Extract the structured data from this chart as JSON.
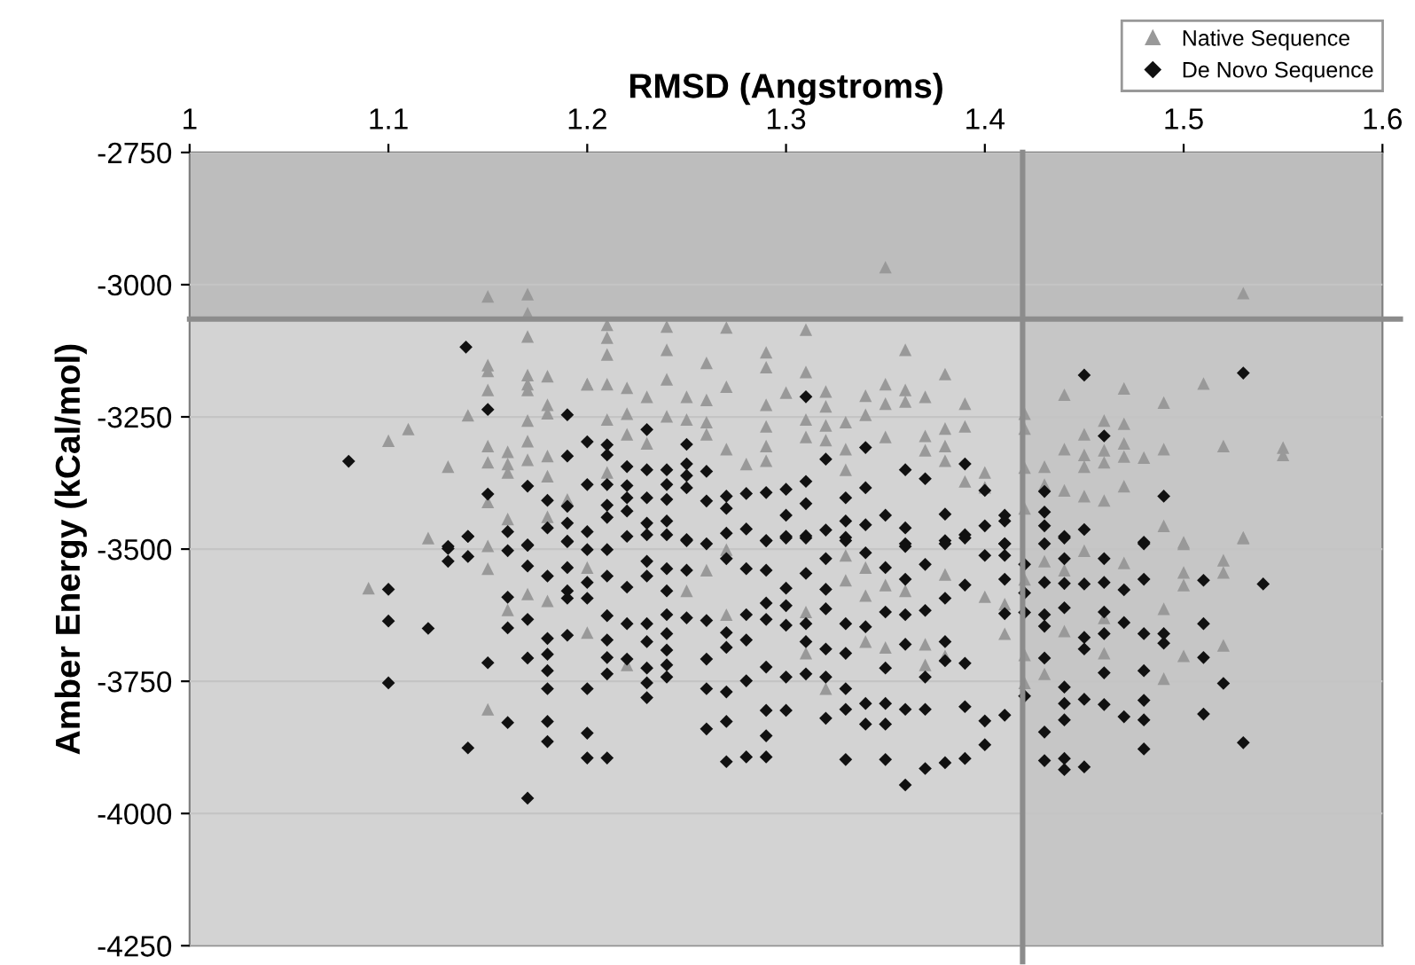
{
  "chart_data": {
    "type": "scatter",
    "xlabel": "RMSD (Angstroms)",
    "ylabel": "Amber Energy (kCal/mol)",
    "xlim": [
      1,
      1.6
    ],
    "xticks": [
      1,
      1.1,
      1.2,
      1.3,
      1.4,
      1.5,
      1.6
    ],
    "ylim": [
      -4250,
      -2750
    ],
    "yticks": [
      -2750,
      -3000,
      -3250,
      -3500,
      -3750,
      -4000,
      -4250
    ],
    "grid": "y",
    "legend": "top right",
    "bands": [
      {
        "axis": "x",
        "from": 1.419,
        "to": 1.6,
        "color": "#c6c6c6"
      },
      {
        "axis": "y",
        "from": -3065,
        "to": -2750,
        "color": "#bdbdbd"
      }
    ],
    "ref_lines": [
      {
        "axis": "x",
        "value": 1.419,
        "color": "#8c8c8c"
      },
      {
        "axis": "y",
        "value": -3065,
        "color": "#8c8c8c"
      }
    ],
    "series": [
      {
        "name": "Native Sequence",
        "color": "#999999",
        "marker": "triangle",
        "x": [
          1.15,
          1.17,
          1.17,
          1.17,
          1.15,
          1.15,
          1.15,
          1.17,
          1.17,
          1.17,
          1.18,
          1.14,
          1.18,
          1.18,
          1.17,
          1.11,
          1.1,
          1.15,
          1.17,
          1.13,
          1.15,
          1.16,
          1.16,
          1.16,
          1.17,
          1.18,
          1.18,
          1.15,
          1.16,
          1.12,
          1.18,
          1.19,
          1.2,
          1.09,
          1.15,
          1.15,
          1.16,
          1.17,
          1.18,
          1.15,
          1.35,
          1.21,
          1.21,
          1.21,
          1.21,
          1.24,
          1.24,
          1.24,
          1.24,
          1.27,
          1.27,
          1.27,
          1.31,
          1.31,
          1.31,
          1.31,
          1.29,
          1.29,
          1.29,
          1.29,
          1.29,
          1.29,
          1.26,
          1.26,
          1.26,
          1.26,
          1.36,
          1.38,
          1.38,
          1.38,
          1.38,
          1.2,
          1.22,
          1.22,
          1.22,
          1.23,
          1.23,
          1.25,
          1.25,
          1.3,
          1.32,
          1.32,
          1.32,
          1.32,
          1.34,
          1.34,
          1.35,
          1.35,
          1.35,
          1.36,
          1.36,
          1.37,
          1.37,
          1.37,
          1.39,
          1.39,
          1.39,
          1.33,
          1.33,
          1.33,
          1.21,
          1.21,
          1.28,
          1.4,
          1.4,
          1.2,
          1.2,
          1.25,
          1.26,
          1.27,
          1.27,
          1.31,
          1.31,
          1.32,
          1.33,
          1.33,
          1.34,
          1.34,
          1.34,
          1.35,
          1.35,
          1.36,
          1.37,
          1.37,
          1.38,
          1.38,
          1.4,
          1.22,
          1.53,
          1.44,
          1.47,
          1.47,
          1.47,
          1.47,
          1.47,
          1.49,
          1.49,
          1.49,
          1.51,
          1.42,
          1.42,
          1.42,
          1.42,
          1.46,
          1.46,
          1.46,
          1.46,
          1.45,
          1.45,
          1.45,
          1.45,
          1.44,
          1.44,
          1.43,
          1.43,
          1.48,
          1.52,
          1.55,
          1.55,
          1.53,
          1.5,
          1.41,
          1.41,
          1.42,
          1.42,
          1.42,
          1.43,
          1.43,
          1.44,
          1.44,
          1.45,
          1.46,
          1.46,
          1.47,
          1.49,
          1.49,
          1.5,
          1.5,
          1.5,
          1.5,
          1.52,
          1.52,
          1.52,
          1.53
        ],
        "values": [
          -3022,
          -3018,
          -3054,
          -3098,
          -3152,
          -3163,
          -3199,
          -3171,
          -3188,
          -3199,
          -3173,
          -3247,
          -3227,
          -3243,
          -3257,
          -3273,
          -3295,
          -3305,
          -3296,
          -3344,
          -3336,
          -3316,
          -3339,
          -3355,
          -3331,
          -3324,
          -3362,
          -3411,
          -3443,
          -3479,
          -3439,
          -3406,
          -3188,
          -3574,
          -3537,
          -3803,
          -3615,
          -3585,
          -3598,
          -3494,
          -2967,
          -3076,
          -3100,
          -3132,
          -3188,
          -3079,
          -3123,
          -3179,
          -3249,
          -3081,
          -3193,
          -3311,
          -3085,
          -3165,
          -3255,
          -3288,
          -3128,
          -3156,
          -3227,
          -3268,
          -3305,
          -3333,
          -3148,
          -3218,
          -3260,
          -3283,
          -3123,
          -3169,
          -3272,
          -3305,
          -3333,
          -3188,
          -3195,
          -3244,
          -3283,
          -3212,
          -3300,
          -3212,
          -3255,
          -3204,
          -3202,
          -3230,
          -3266,
          -3294,
          -3210,
          -3246,
          -3188,
          -3225,
          -3288,
          -3199,
          -3221,
          -3212,
          -3286,
          -3313,
          -3225,
          -3268,
          -3372,
          -3260,
          -3311,
          -3350,
          -3255,
          -3355,
          -3339,
          -3355,
          -3383,
          -3535,
          -3658,
          -3579,
          -3540,
          -3624,
          -3501,
          -3619,
          -3697,
          -3764,
          -3512,
          -3559,
          -3535,
          -3588,
          -3675,
          -3568,
          -3686,
          -3579,
          -3680,
          -3719,
          -3548,
          -3702,
          -3590,
          -3719,
          -3016,
          -3208,
          -3196,
          -3263,
          -3300,
          -3325,
          -3381,
          -3223,
          -3311,
          -3456,
          -3187,
          -3244,
          -3272,
          -3346,
          -3423,
          -3257,
          -3313,
          -3336,
          -3408,
          -3283,
          -3322,
          -3344,
          -3400,
          -3311,
          -3389,
          -3344,
          -3378,
          -3327,
          -3305,
          -3308,
          -3322,
          -3478,
          -3487,
          -3604,
          -3660,
          -3557,
          -3700,
          -3753,
          -3523,
          -3736,
          -3540,
          -3655,
          -3503,
          -3630,
          -3697,
          -3526,
          -3613,
          -3745,
          -3490,
          -3544,
          -3568,
          -3702,
          -3521,
          -3544,
          -3682,
          -3479
        ]
      },
      {
        "name": "De Novo Sequence",
        "color": "#111111",
        "marker": "diamond",
        "x": [
          1.139,
          1.15,
          1.19,
          1.08,
          1.19,
          1.17,
          1.15,
          1.18,
          1.18,
          1.19,
          1.19,
          1.19,
          1.14,
          1.16,
          1.13,
          1.17,
          1.13,
          1.13,
          1.14,
          1.14,
          1.16,
          1.17,
          1.17,
          1.1,
          1.1,
          1.1,
          1.12,
          1.16,
          1.16,
          1.16,
          1.17,
          1.17,
          1.17,
          1.15,
          1.14,
          1.18,
          1.18,
          1.18,
          1.18,
          1.18,
          1.18,
          1.18,
          1.19,
          1.19,
          1.19,
          1.19,
          1.19,
          1.31,
          1.23,
          1.23,
          1.23,
          1.23,
          1.2,
          1.2,
          1.2,
          1.21,
          1.21,
          1.21,
          1.21,
          1.21,
          1.22,
          1.22,
          1.22,
          1.22,
          1.22,
          1.24,
          1.24,
          1.24,
          1.24,
          1.25,
          1.25,
          1.25,
          1.25,
          1.25,
          1.26,
          1.26,
          1.27,
          1.27,
          1.27,
          1.28,
          1.28,
          1.29,
          1.29,
          1.3,
          1.3,
          1.3,
          1.31,
          1.31,
          1.31,
          1.32,
          1.32,
          1.33,
          1.33,
          1.33,
          1.34,
          1.34,
          1.34,
          1.35,
          1.36,
          1.36,
          1.36,
          1.37,
          1.38,
          1.38,
          1.39,
          1.39,
          1.4,
          1.4,
          1.2,
          1.2,
          1.2,
          1.2,
          1.2,
          1.2,
          1.21,
          1.21,
          1.21,
          1.21,
          1.21,
          1.21,
          1.21,
          1.22,
          1.22,
          1.22,
          1.23,
          1.23,
          1.23,
          1.23,
          1.23,
          1.23,
          1.23,
          1.23,
          1.24,
          1.24,
          1.24,
          1.24,
          1.24,
          1.24,
          1.24,
          1.24,
          1.25,
          1.25,
          1.25,
          1.26,
          1.26,
          1.26,
          1.26,
          1.26,
          1.27,
          1.27,
          1.27,
          1.27,
          1.27,
          1.27,
          1.28,
          1.28,
          1.28,
          1.28,
          1.28,
          1.29,
          1.29,
          1.29,
          1.29,
          1.29,
          1.29,
          1.29,
          1.29,
          1.3,
          1.3,
          1.3,
          1.3,
          1.3,
          1.3,
          1.31,
          1.31,
          1.31,
          1.31,
          1.31,
          1.32,
          1.32,
          1.32,
          1.32,
          1.32,
          1.32,
          1.33,
          1.33,
          1.33,
          1.33,
          1.33,
          1.33,
          1.34,
          1.34,
          1.34,
          1.34,
          1.35,
          1.35,
          1.35,
          1.35,
          1.35,
          1.35,
          1.36,
          1.36,
          1.36,
          1.36,
          1.36,
          1.36,
          1.37,
          1.37,
          1.37,
          1.37,
          1.37,
          1.38,
          1.38,
          1.38,
          1.38,
          1.38,
          1.39,
          1.39,
          1.39,
          1.39,
          1.39,
          1.4,
          1.4,
          1.4,
          1.45,
          1.53,
          1.46,
          1.49,
          1.43,
          1.43,
          1.43,
          1.41,
          1.41,
          1.41,
          1.45,
          1.44,
          1.48,
          1.41,
          1.41,
          1.41,
          1.41,
          1.41,
          1.42,
          1.42,
          1.42,
          1.42,
          1.43,
          1.43,
          1.43,
          1.43,
          1.43,
          1.43,
          1.43,
          1.44,
          1.44,
          1.44,
          1.44,
          1.44,
          1.44,
          1.44,
          1.44,
          1.44,
          1.45,
          1.45,
          1.45,
          1.45,
          1.45,
          1.46,
          1.46,
          1.46,
          1.46,
          1.46,
          1.46,
          1.47,
          1.47,
          1.47,
          1.48,
          1.48,
          1.48,
          1.48,
          1.48,
          1.48,
          1.48,
          1.49,
          1.49,
          1.51,
          1.51,
          1.51,
          1.51,
          1.52,
          1.53,
          1.54
        ],
        "values": [
          -3118,
          -3236,
          -3246,
          -3334,
          -3324,
          -3381,
          -3396,
          -3408,
          -3460,
          -3419,
          -3451,
          -3485,
          -3476,
          -3467,
          -3495,
          -3493,
          -3499,
          -3523,
          -3476,
          -3514,
          -3503,
          -3492,
          -3532,
          -3576,
          -3636,
          -3753,
          -3650,
          -3591,
          -3649,
          -3828,
          -3633,
          -3706,
          -3971,
          -3715,
          -3876,
          -3551,
          -3669,
          -3699,
          -3730,
          -3764,
          -3826,
          -3864,
          -3486,
          -3535,
          -3579,
          -3593,
          -3663,
          -3212,
          -3274,
          -3350,
          -3403,
          -3451,
          -3297,
          -3378,
          -3467,
          -3303,
          -3322,
          -3378,
          -3417,
          -3440,
          -3344,
          -3380,
          -3403,
          -3428,
          -3476,
          -3350,
          -3378,
          -3406,
          -3447,
          -3302,
          -3339,
          -3361,
          -3384,
          -3482,
          -3353,
          -3409,
          -3400,
          -3423,
          -3470,
          -3395,
          -3462,
          -3393,
          -3484,
          -3387,
          -3436,
          -3476,
          -3372,
          -3414,
          -3475,
          -3330,
          -3464,
          -3403,
          -3447,
          -3478,
          -3308,
          -3384,
          -3454,
          -3436,
          -3350,
          -3460,
          -3490,
          -3367,
          -3434,
          -3484,
          -3339,
          -3473,
          -3389,
          -3456,
          -3501,
          -3563,
          -3593,
          -3764,
          -3848,
          -3895,
          -3501,
          -3551,
          -3626,
          -3672,
          -3705,
          -3736,
          -3895,
          -3572,
          -3641,
          -3708,
          -3473,
          -3523,
          -3551,
          -3641,
          -3675,
          -3725,
          -3753,
          -3781,
          -3473,
          -3537,
          -3579,
          -3624,
          -3660,
          -3691,
          -3719,
          -3742,
          -3484,
          -3540,
          -3630,
          -3490,
          -3635,
          -3708,
          -3764,
          -3840,
          -3518,
          -3658,
          -3686,
          -3770,
          -3826,
          -3902,
          -3537,
          -3624,
          -3672,
          -3749,
          -3893,
          -3484,
          -3540,
          -3602,
          -3633,
          -3723,
          -3805,
          -3853,
          -3893,
          -3479,
          -3574,
          -3607,
          -3644,
          -3742,
          -3805,
          -3479,
          -3546,
          -3641,
          -3675,
          -3736,
          -3518,
          -3576,
          -3613,
          -3689,
          -3742,
          -3820,
          -3484,
          -3641,
          -3697,
          -3764,
          -3803,
          -3898,
          -3507,
          -3647,
          -3792,
          -3831,
          -3535,
          -3619,
          -3725,
          -3792,
          -3831,
          -3898,
          -3495,
          -3557,
          -3624,
          -3680,
          -3803,
          -3946,
          -3529,
          -3616,
          -3742,
          -3803,
          -3915,
          -3490,
          -3593,
          -3675,
          -3711,
          -3904,
          -3479,
          -3568,
          -3716,
          -3798,
          -3896,
          -3512,
          -3825,
          -3870,
          -3171,
          -3167,
          -3286,
          -3400,
          -3391,
          -3430,
          -3456,
          -3436,
          -3447,
          -3490,
          -3463,
          -3476,
          -3487,
          -3490,
          -3512,
          -3557,
          -3622,
          -3814,
          -3529,
          -3583,
          -3620,
          -3778,
          -3490,
          -3563,
          -3624,
          -3646,
          -3706,
          -3846,
          -3900,
          -3479,
          -3518,
          -3565,
          -3611,
          -3761,
          -3792,
          -3823,
          -3896,
          -3917,
          -3566,
          -3667,
          -3689,
          -3784,
          -3912,
          -3518,
          -3563,
          -3619,
          -3660,
          -3734,
          -3794,
          -3577,
          -3639,
          -3817,
          -3490,
          -3557,
          -3660,
          -3730,
          -3786,
          -3823,
          -3878,
          -3660,
          -3678,
          -3559,
          -3641,
          -3705,
          -3812,
          -3754,
          -3866,
          -3566
        ]
      }
    ]
  }
}
